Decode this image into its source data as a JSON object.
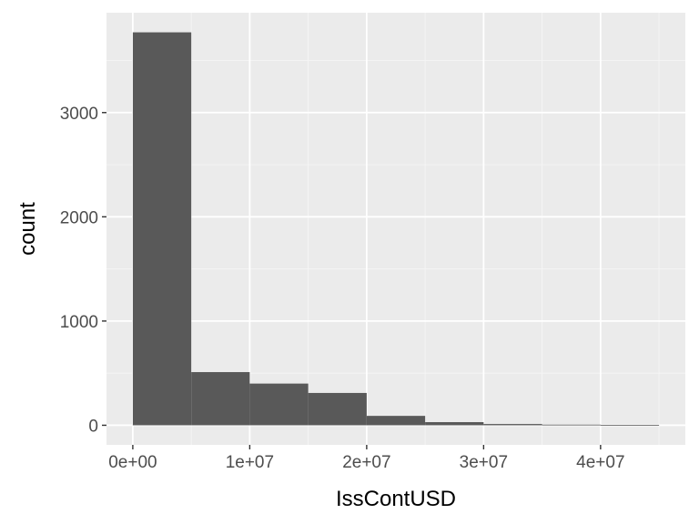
{
  "chart_data": {
    "type": "bar",
    "subtype": "histogram",
    "xlabel": "IssContUSD",
    "ylabel": "count",
    "bins": [
      {
        "x0": 0,
        "x1": 5000000,
        "count": 3770
      },
      {
        "x0": 5000000,
        "x1": 10000000,
        "count": 510
      },
      {
        "x0": 10000000,
        "x1": 15000000,
        "count": 400
      },
      {
        "x0": 15000000,
        "x1": 20000000,
        "count": 310
      },
      {
        "x0": 20000000,
        "x1": 25000000,
        "count": 90
      },
      {
        "x0": 25000000,
        "x1": 30000000,
        "count": 30
      },
      {
        "x0": 30000000,
        "x1": 35000000,
        "count": 12
      },
      {
        "x0": 35000000,
        "x1": 40000000,
        "count": 6
      },
      {
        "x0": 40000000,
        "x1": 45000000,
        "count": 4
      }
    ],
    "xlim": [
      -2250000,
      47250000
    ],
    "ylim": [
      -188,
      3958
    ],
    "x_ticks": [
      {
        "value": 0,
        "label": "0e+00"
      },
      {
        "value": 10000000,
        "label": "1e+07"
      },
      {
        "value": 20000000,
        "label": "2e+07"
      },
      {
        "value": 30000000,
        "label": "3e+07"
      },
      {
        "value": 40000000,
        "label": "4e+07"
      }
    ],
    "y_ticks": [
      {
        "value": 0,
        "label": "0"
      },
      {
        "value": 1000,
        "label": "1000"
      },
      {
        "value": 2000,
        "label": "2000"
      },
      {
        "value": 3000,
        "label": "3000"
      }
    ],
    "grid": true,
    "colors": {
      "panel_background": "#ebebeb",
      "grid_major": "#ffffff",
      "grid_minor": "#f5f5f5",
      "bar_fill": "#595959",
      "tick_label": "#4d4d4d",
      "axis_title": "#000000",
      "tick_mark": "#333333"
    }
  }
}
